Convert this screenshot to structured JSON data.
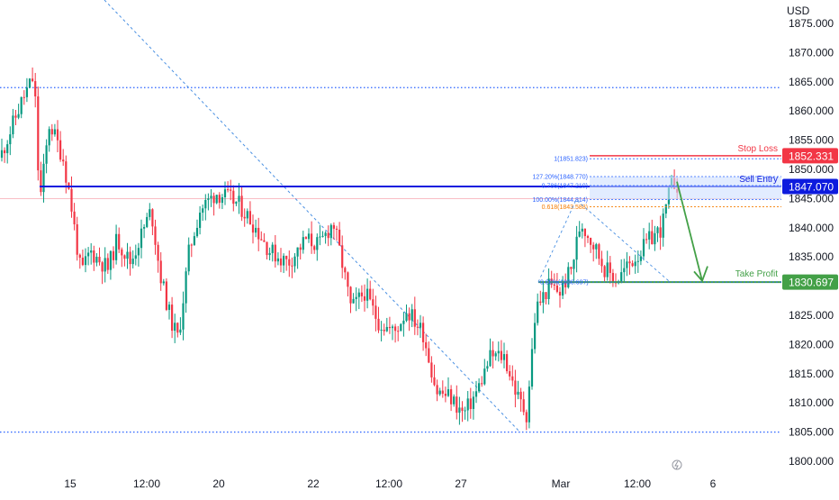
{
  "chart_data": {
    "type": "candlestick",
    "currency": "USD",
    "y_ticks": [
      "1875.000",
      "1870.000",
      "1865.000",
      "1860.000",
      "1855.000",
      "1850.000",
      "1845.000",
      "1840.000",
      "1835.000",
      "1830.000",
      "1825.000",
      "1820.000",
      "1815.000",
      "1810.000",
      "1805.000",
      "1800.000"
    ],
    "ylim": [
      1798.5,
      1877.0
    ],
    "x_ticks": [
      "15",
      "12:00",
      "20",
      "22",
      "12:00",
      "27",
      "Mar",
      "12:00",
      "6"
    ],
    "price_labels": {
      "stop_loss": "1852.331",
      "sell_entry": "1847.070",
      "take_profit": "1830.697"
    },
    "annotations": {
      "stop_loss": "Stop Loss",
      "sell_entry": "Sell Entry",
      "take_profit": "Take Profit"
    },
    "fib_labels": [
      "1(1851.823)",
      "127.20%(1848.770)",
      "0.786(1847.210)",
      "100.00%(1844.814)",
      "0.618(1843.588)",
      "0.00%(1830.697)"
    ],
    "horizontal_levels": {
      "resistance_dotted": 1864.0,
      "support_dotted": 1805.0,
      "stop_loss": 1852.331,
      "sell_entry": 1847.07,
      "take_profit": 1830.697,
      "fib_1": 1851.823,
      "fib_127": 1848.77,
      "fib_786": 1847.21,
      "fib_100": 1844.814,
      "fib_618": 1843.588,
      "fib_0": 1830.697
    },
    "colors": {
      "up": "#089981",
      "down": "#f23645",
      "stop_loss": "#f23645",
      "sell_entry": "#0d1bde",
      "take_profit": "#43a047",
      "fib_blue": "#2962ff",
      "fib_orange": "#f57c00",
      "trendline": "#4a90e2",
      "level_dotted": "#2962ff"
    }
  }
}
